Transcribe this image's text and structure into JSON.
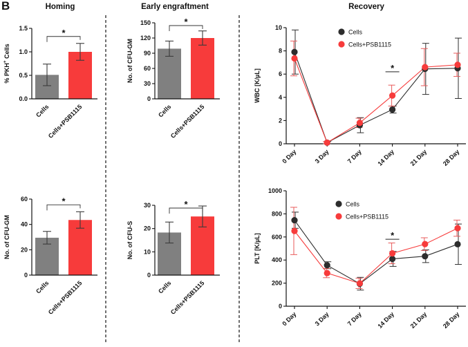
{
  "figure": {
    "panel_label": "B",
    "section_titles": [
      "Homing",
      "Early engraftment",
      "Recovery"
    ],
    "colors": {
      "cells": "#808080",
      "treated": "#f73b3b",
      "cells_line": "#2d2d2d"
    }
  },
  "chart_data": [
    {
      "id": "homing",
      "type": "bar",
      "ylabel": "% PKH+ Cells",
      "ylabel_main": "% PKH",
      "ylabel_sup": "+",
      "ylabel_tail": " Cells",
      "categories": [
        "Cells",
        "Cells+PSB1115"
      ],
      "values": [
        0.51,
        1.0
      ],
      "errors": [
        0.23,
        0.18
      ],
      "ylim": [
        0,
        1.5
      ],
      "yticks": [
        "0.0",
        "0.5",
        "1.0",
        "1.5"
      ],
      "significance": "*"
    },
    {
      "id": "cfu-gm-early",
      "type": "bar",
      "ylabel": "No. of CFU-GM",
      "categories": [
        "Cells",
        "Cells+PSB1115"
      ],
      "values": [
        99,
        120
      ],
      "errors": [
        15,
        14
      ],
      "ylim": [
        0,
        150
      ],
      "yticks": [
        "0",
        "30",
        "60",
        "90",
        "120",
        "150"
      ],
      "significance": "*"
    },
    {
      "id": "cfu-gm-homing",
      "type": "bar",
      "ylabel": "No. of CFU-GM",
      "categories": [
        "Cells",
        "Cells+PSB1115"
      ],
      "values": [
        29.5,
        43.5
      ],
      "errors": [
        5,
        6.5
      ],
      "ylim": [
        0,
        60
      ],
      "yticks": [
        "0",
        "20",
        "40",
        "60"
      ],
      "significance": "*"
    },
    {
      "id": "cfu-s",
      "type": "bar",
      "ylabel": "No. of CFU-S",
      "categories": [
        "Cells",
        "Cells+PSB1115"
      ],
      "values": [
        18.3,
        25.2
      ],
      "errors": [
        4.5,
        4.5
      ],
      "ylim": [
        0,
        30
      ],
      "yticks": [
        "0",
        "10",
        "20",
        "30"
      ],
      "significance": "*"
    },
    {
      "id": "wbc",
      "type": "line",
      "ylabel": "WBC [K/µL]",
      "x": [
        "0 Day",
        "3 Day",
        "7 Day",
        "14 Day",
        "21 Day",
        "28 Day"
      ],
      "series": [
        {
          "name": "Cells",
          "values": [
            7.9,
            0.1,
            1.6,
            2.95,
            6.45,
            6.5
          ],
          "errors": [
            1.9,
            0.1,
            0.65,
            0.3,
            2.2,
            2.6
          ]
        },
        {
          "name": "Cells+PSB1115",
          "values": [
            7.35,
            0.1,
            1.8,
            4.15,
            6.6,
            6.8
          ],
          "errors": [
            1.5,
            0.1,
            0.4,
            0.9,
            1.6,
            1.0
          ]
        }
      ],
      "ylim": [
        0,
        10
      ],
      "yticks": [
        "0",
        "2",
        "4",
        "6",
        "8",
        "10"
      ],
      "legend": "top-right",
      "significance": "*",
      "significance_at": "14 Day"
    },
    {
      "id": "plt",
      "type": "line",
      "ylabel": "PLT [K/µL]",
      "x": [
        "0 Day",
        "3 Day",
        "7 Day",
        "14 Day",
        "21 Day",
        "28 Day"
      ],
      "series": [
        {
          "name": "Cells",
          "values": [
            745,
            355,
            195,
            410,
            433,
            537
          ],
          "errors": [
            70,
            30,
            55,
            65,
            55,
            175
          ]
        },
        {
          "name": "Cells+PSB1115",
          "values": [
            652,
            287,
            198,
            458,
            538,
            676
          ],
          "errors": [
            205,
            40,
            45,
            90,
            55,
            70
          ]
        }
      ],
      "ylim": [
        0,
        1000
      ],
      "yticks": [
        "0",
        "200",
        "400",
        "600",
        "800",
        "1000"
      ],
      "legend": "top-right",
      "significance": "*",
      "significance_at": "14 Day"
    }
  ]
}
